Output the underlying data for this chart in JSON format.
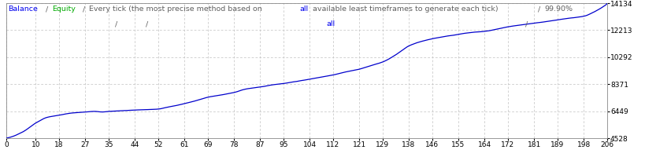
{
  "title_parts": [
    {
      "text": "Balance",
      "color": "#0000EE"
    },
    {
      "text": " / ",
      "color": "#606060"
    },
    {
      "text": "Equity",
      "color": "#00AA00"
    },
    {
      "text": " / ",
      "color": "#606060"
    },
    {
      "text": "Every tick (the most precise method based on ",
      "color": "#606060"
    },
    {
      "text": "all",
      "color": "#0000EE"
    },
    {
      "text": " available least timeframes to generate each tick)",
      "color": "#606060"
    },
    {
      "text": " / ",
      "color": "#606060"
    },
    {
      "text": "99.90%",
      "color": "#606060"
    }
  ],
  "x_ticks": [
    0,
    10,
    18,
    27,
    35,
    44,
    52,
    61,
    69,
    78,
    87,
    95,
    104,
    112,
    121,
    129,
    138,
    146,
    155,
    164,
    172,
    181,
    189,
    198,
    206
  ],
  "y_ticks": [
    4528,
    6449,
    8371,
    10292,
    12213,
    14134
  ],
  "x_min": 0,
  "x_max": 206,
  "y_min": 4528,
  "y_max": 14134,
  "background_color": "#FFFFFF",
  "grid_color": "#C0C0C0",
  "line_color": "#0000CC",
  "border_color": "#888888",
  "title_fontsize": 6.8,
  "tick_fontsize": 6.5,
  "key_points_x": [
    0,
    5,
    10,
    14,
    18,
    22,
    27,
    30,
    33,
    35,
    38,
    40,
    44,
    48,
    52,
    55,
    58,
    61,
    65,
    69,
    73,
    78,
    82,
    87,
    91,
    95,
    99,
    104,
    108,
    112,
    116,
    121,
    125,
    129,
    133,
    138,
    142,
    146,
    150,
    155,
    159,
    164,
    168,
    172,
    176,
    181,
    185,
    189,
    193,
    198,
    201,
    206
  ],
  "key_points_y": [
    4528,
    4900,
    5600,
    6000,
    6150,
    6300,
    6380,
    6420,
    6380,
    6420,
    6450,
    6480,
    6520,
    6560,
    6600,
    6720,
    6850,
    7000,
    7200,
    7450,
    7600,
    7800,
    8050,
    8200,
    8350,
    8450,
    8580,
    8750,
    8900,
    9050,
    9250,
    9450,
    9700,
    9950,
    10400,
    11100,
    11400,
    11600,
    11750,
    11900,
    12050,
    12150,
    12300,
    12480,
    12600,
    12750,
    12850,
    12980,
    13100,
    13250,
    13500,
    14134
  ]
}
